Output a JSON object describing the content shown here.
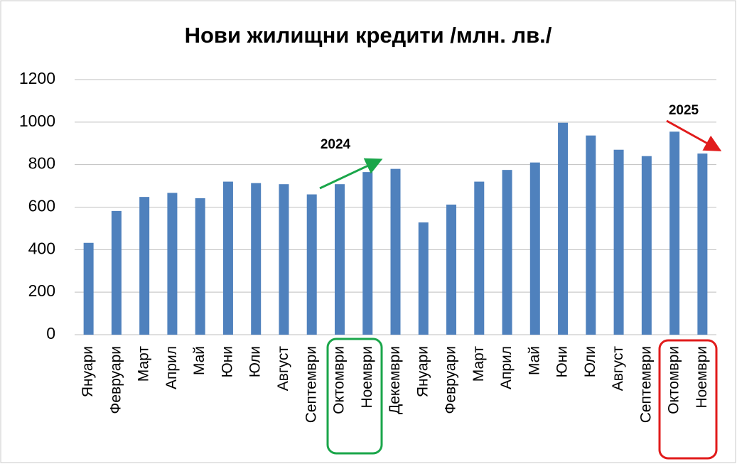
{
  "chart_data": {
    "type": "bar",
    "title": "Нови жилищни кредити /млн. лв./",
    "categories": [
      "Януари",
      "Февруари",
      "Март",
      "Април",
      "Май",
      "Юни",
      "Юли",
      "Август",
      "Септември",
      "Октомври",
      "Ноември",
      "Декември",
      "Януари",
      "Февруари",
      "Март",
      "Април",
      "Май",
      "Юни",
      "Юли",
      "Август",
      "Септември",
      "Октомври",
      "Ноември"
    ],
    "values": [
      432,
      582,
      648,
      667,
      642,
      720,
      713,
      708,
      660,
      708,
      765,
      780,
      528,
      612,
      720,
      775,
      810,
      997,
      937,
      870,
      840,
      955,
      852
    ],
    "color": "#4f81bd",
    "ylim": [
      0,
      1200
    ],
    "yticks": [
      0,
      200,
      400,
      600,
      800,
      1000,
      1200
    ],
    "grid": true,
    "annotations": [
      {
        "text": "2024"
      },
      {
        "text": "2025"
      }
    ]
  }
}
